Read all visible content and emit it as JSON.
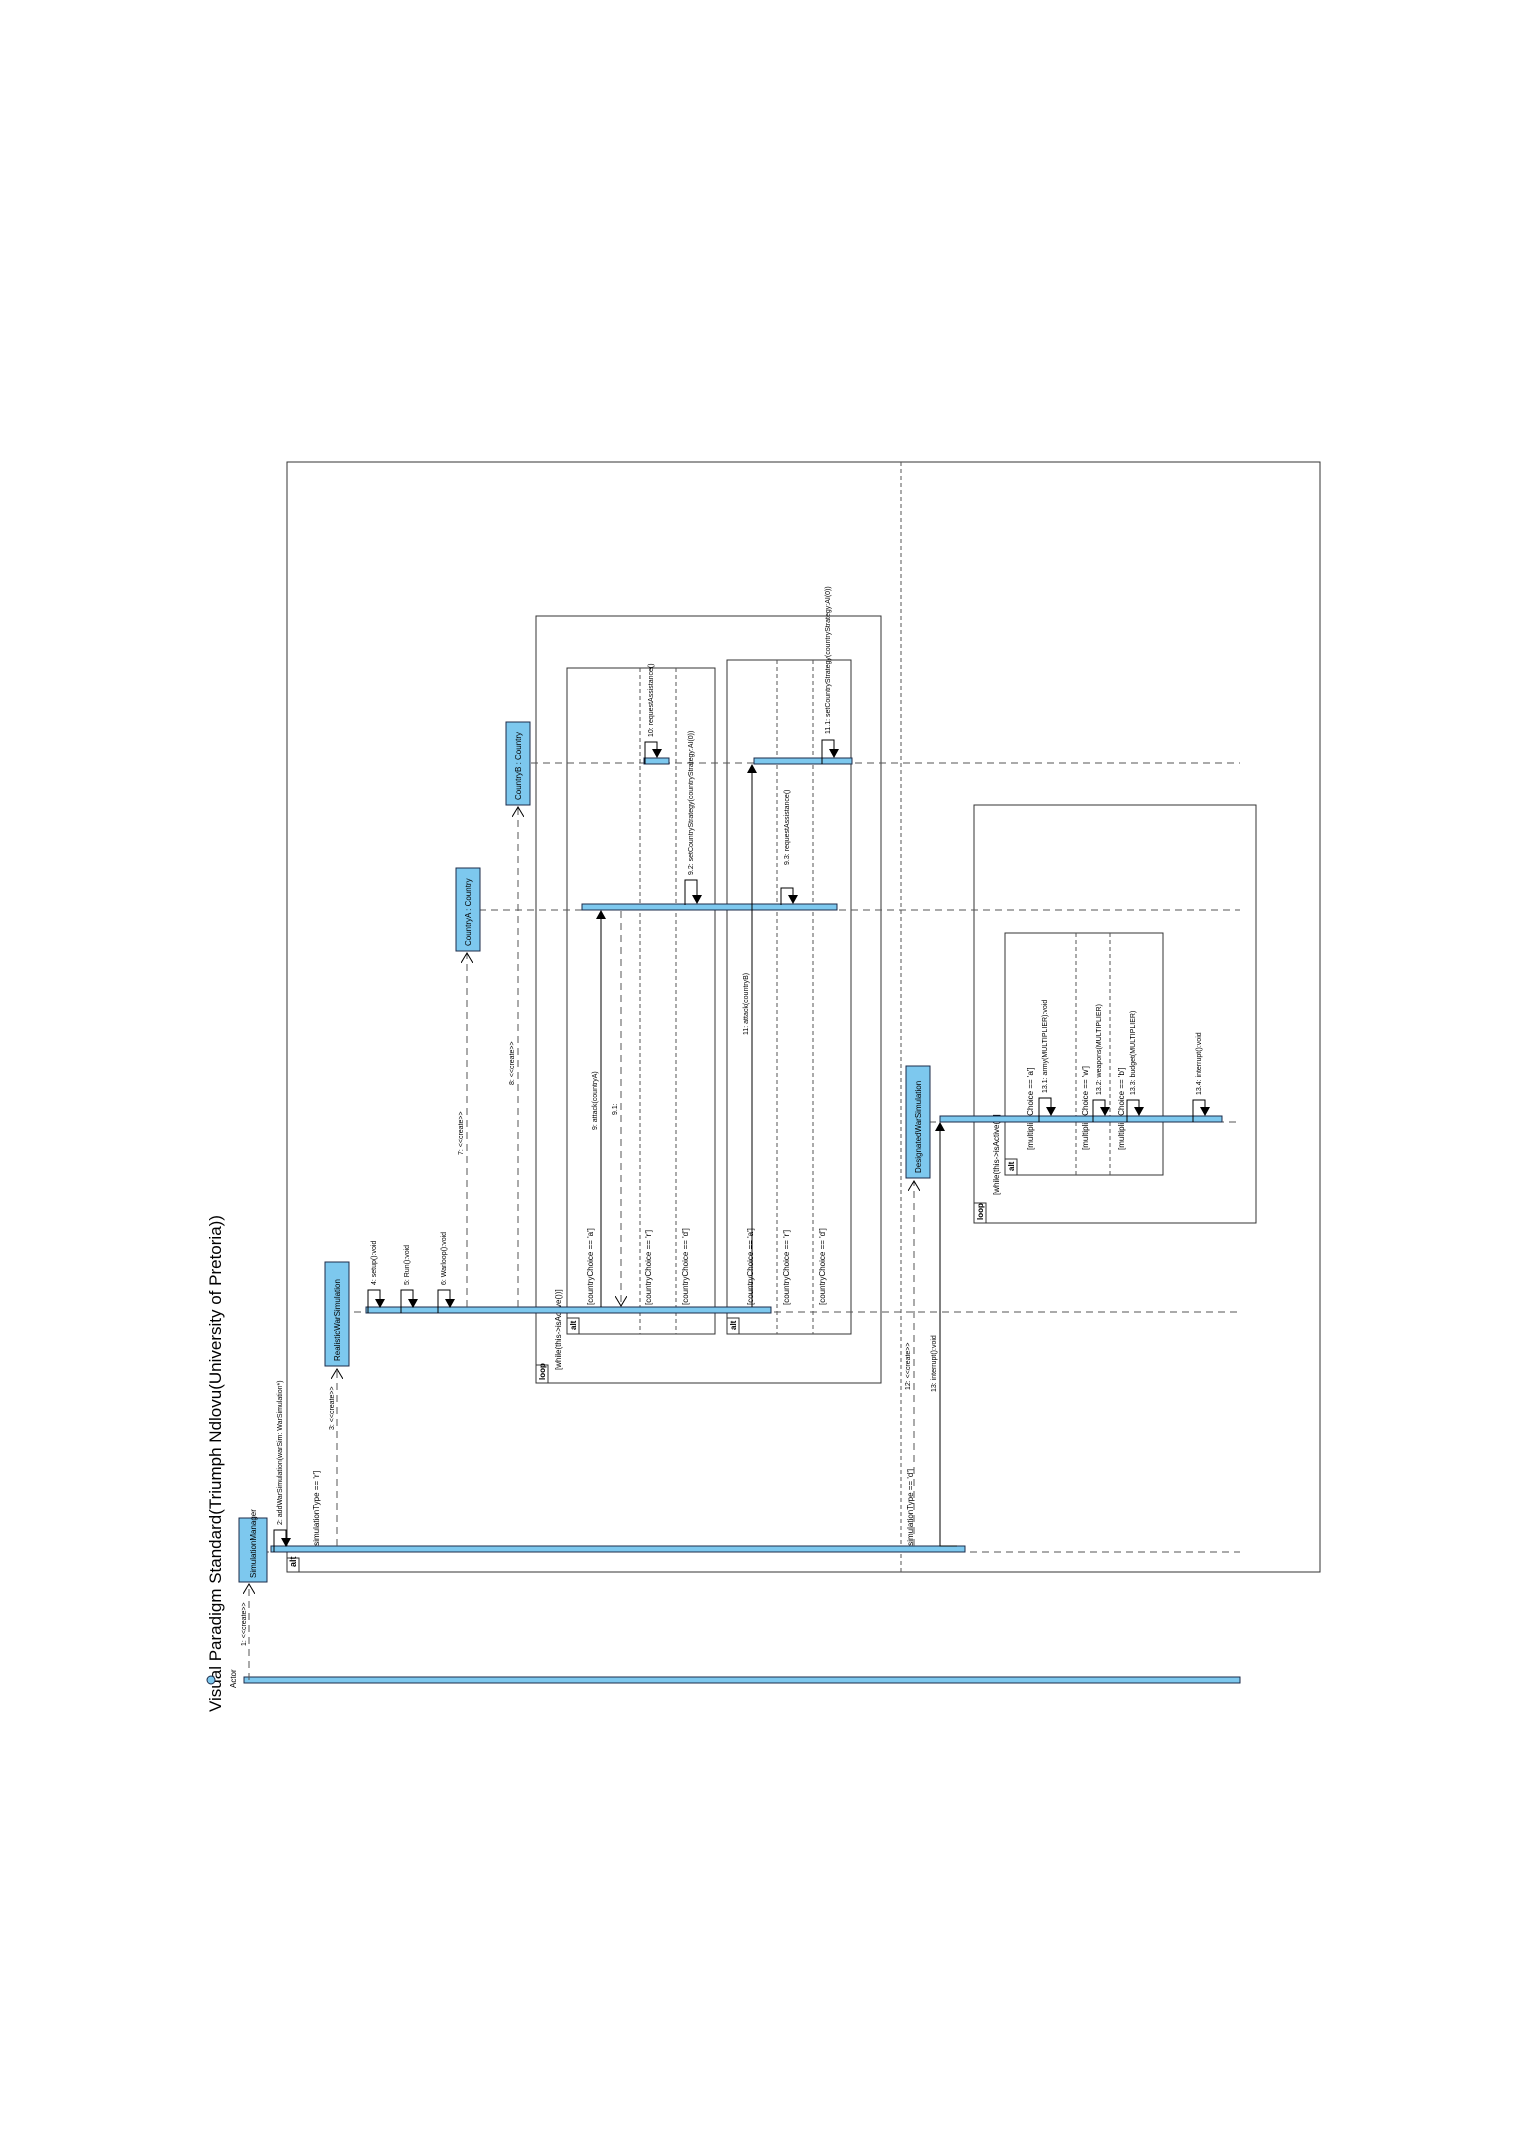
{
  "watermark": "Visual Paradigm Standard(Triumph Ndlovu(University of Pretoria))",
  "lifelines": {
    "actor": "Actor",
    "simulation_manager": "SimulationManager",
    "realistic_war": "RealisticWarSimulation",
    "country_a": "CountryA : Country",
    "country_b": "CountryB : Country",
    "designated_war": "DesignatedWarSimulation"
  },
  "messages": {
    "m1": "1: <<create>>",
    "m2": "2: addWarSimulation(warSim: WarSimulation*)",
    "m3": "3: <<create>>",
    "m4": "4: setup():void",
    "m5": "5: Run():void",
    "m6": "6: Warloop():void",
    "m7": "7: <<create>>",
    "m8": "8: <<create>>",
    "m9": "9: attack(countryA)",
    "m9_1": "9.1:",
    "m9_2": "9.2: setCountryStrategy(countryStrategy:AI(0))",
    "m9_3": "9.3: requestAssistance()",
    "m10": "10: requestAssistance()",
    "m11": "11: attack(countryB)",
    "m11_1": "11.1: setCountryStrategy(countryStrategy:AI(0))",
    "m12": "12: <<create>>",
    "m13": "13: interrupt():void",
    "m13_1": "13.1: army(MULTIPLIER):void",
    "m13_2": "13.2: weapons(MULTIPLIER)",
    "m13_3": "13.3: budget(MULTIPLIER)",
    "m13_4": "13.4: interrupt():void"
  },
  "fragments": {
    "alt": "alt",
    "loop": "loop",
    "sim_type_r": "[simulationType == 'r']",
    "sim_type_d": "[simulationType == 'd']",
    "while_active": "[while(this->isActive())]",
    "choice_a_a": "[countryChoice == 'a']",
    "choice_a_r": "[countryChoice == 'r']",
    "choice_a_d": "[countryChoice == 'd']",
    "choice_b_a": "[countryChoice == 'a']",
    "choice_b_r": "[countryChoice == 'r']",
    "choice_b_d": "[countryChoice == 'd']",
    "while_active_2": "[while(this->isActive())]",
    "mult_a": "[multiplierChoice == 'a']",
    "mult_w": "[multiplierChoice == 'w']",
    "mult_b": "[multiplierChoice == 'b']"
  },
  "colors": {
    "lifeline_fill": "#7dc8ee",
    "border": "#1c2b4a",
    "watermark": "#8a8a8a"
  }
}
